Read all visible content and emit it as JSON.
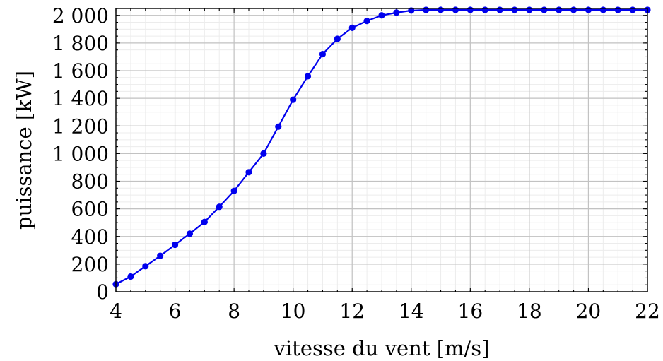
{
  "chart_data": {
    "type": "line",
    "title": "",
    "xlabel": "vitesse du vent [m/s]",
    "ylabel": "puissance [kW]",
    "xlim": [
      4,
      22
    ],
    "ylim": [
      0,
      2050
    ],
    "grid": true,
    "x_ticks": [
      4,
      6,
      8,
      10,
      12,
      14,
      16,
      18,
      20,
      22
    ],
    "x_tick_labels": [
      "4",
      "6",
      "8",
      "10",
      "12",
      "14",
      "16",
      "18",
      "20",
      "22"
    ],
    "y_ticks": [
      0,
      200,
      400,
      600,
      800,
      1000,
      1200,
      1400,
      1600,
      1800,
      2000
    ],
    "y_tick_labels": [
      "0",
      "200",
      "400",
      "600",
      "800",
      "1 000",
      "1 200",
      "1 400",
      "1 600",
      "1 800",
      "2 000"
    ],
    "series": [
      {
        "color": "#0000ee",
        "x": [
          4,
          4.5,
          5,
          5.5,
          6,
          6.5,
          7,
          7.5,
          8,
          8.5,
          9,
          9.5,
          10,
          10.5,
          11,
          11.5,
          12,
          12.5,
          13,
          13.5,
          14,
          14.5,
          15,
          15.5,
          16,
          16.5,
          17,
          17.5,
          18,
          18.5,
          19,
          19.5,
          20,
          20.5,
          21,
          21.5,
          22
        ],
        "y": [
          55,
          110,
          185,
          260,
          340,
          420,
          505,
          615,
          730,
          865,
          1000,
          1195,
          1390,
          1560,
          1720,
          1830,
          1910,
          1960,
          2000,
          2020,
          2035,
          2040,
          2040,
          2040,
          2040,
          2040,
          2040,
          2040,
          2040,
          2040,
          2040,
          2040,
          2040,
          2040,
          2040,
          2040,
          2040
        ]
      }
    ]
  }
}
